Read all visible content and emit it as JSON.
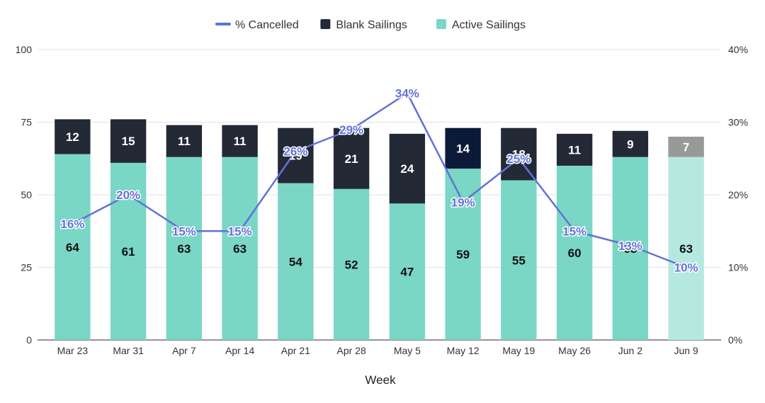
{
  "chart_data": {
    "type": "bar",
    "stacked": true,
    "title": "",
    "xlabel": "Week",
    "ylabel": "",
    "y2label": "",
    "categories": [
      "Mar 23",
      "Mar 31",
      "Apr 7",
      "Apr 14",
      "Apr 21",
      "Apr 28",
      "May 5",
      "May 12",
      "May 19",
      "May 26",
      "Jun 2",
      "Jun 9"
    ],
    "series": [
      {
        "name": "Active Sailings",
        "type": "bar",
        "axis": "left",
        "values": [
          64,
          61,
          63,
          63,
          54,
          52,
          47,
          59,
          55,
          60,
          63,
          63
        ],
        "labels": [
          "64",
          "61",
          "63",
          "63",
          "54",
          "52",
          "47",
          "59",
          "55",
          "60",
          "63",
          "63"
        ]
      },
      {
        "name": "Blank Sailings",
        "type": "bar",
        "axis": "left",
        "values": [
          12,
          15,
          11,
          11,
          19,
          21,
          24,
          14,
          18,
          11,
          9,
          7
        ],
        "labels": [
          "12",
          "15",
          "11",
          "11",
          "19",
          "21",
          "24",
          "14",
          "18",
          "11",
          "9",
          "7"
        ]
      },
      {
        "name": "% Cancelled",
        "type": "line",
        "axis": "right",
        "values": [
          16,
          20,
          15,
          15,
          26,
          29,
          34,
          19,
          25,
          15,
          13,
          10
        ],
        "labels": [
          "16%",
          "20%",
          "15%",
          "15%",
          "26%",
          "29%",
          "34%",
          "19%",
          "25%",
          "15%",
          "13%",
          "10%"
        ]
      }
    ],
    "ylim": [
      0,
      100
    ],
    "y2lim": [
      0,
      40
    ],
    "yticks": [
      "0",
      "25",
      "50",
      "75",
      "100"
    ],
    "y2ticks": [
      "0%",
      "10%",
      "20%",
      "30%",
      "40%"
    ],
    "grid": true,
    "legend": {
      "position": "top-center",
      "items": [
        {
          "label": "% Cancelled",
          "marker": "line"
        },
        {
          "label": "Blank Sailings",
          "marker": "square"
        },
        {
          "label": "Active Sailings",
          "marker": "square"
        }
      ]
    },
    "colors": {
      "active": "#7ad6c5",
      "blank": "#232a36",
      "line": "#6272d6",
      "grid": "#e2e2e2",
      "active_highlight_may12": "#7ad6c5",
      "blank_highlight_may12": "#0c1a3a",
      "active_projected_jun9": "#b5e9e0",
      "blank_projected_jun9": "#999999"
    }
  }
}
